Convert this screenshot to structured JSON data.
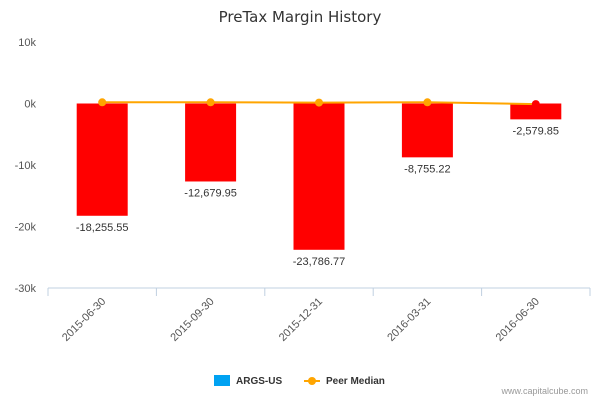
{
  "chart_data": {
    "type": "bar",
    "title": "PreTax Margin History",
    "categories": [
      "2015-06-30",
      "2015-09-30",
      "2015-12-31",
      "2016-03-31",
      "2016-06-30"
    ],
    "series": [
      {
        "name": "ARGS-US",
        "type": "bar",
        "values": [
          -18255.55,
          -12679.95,
          -23786.77,
          -8755.22,
          -2579.85
        ],
        "labels": [
          "-18,255.55",
          "-12,679.95",
          "-23,786.77",
          "-8,755.22",
          "-2,579.85"
        ],
        "color": "#ff0000",
        "legend_color": "#00a2f2"
      },
      {
        "name": "Peer Median",
        "type": "line",
        "values": [
          200,
          200,
          150,
          200,
          -100
        ],
        "color": "#ffa500",
        "last_point_color": "#ff0000"
      }
    ],
    "ylim": [
      -30000,
      10000
    ],
    "yticks": [
      10000,
      0,
      -10000,
      -20000,
      -30000
    ],
    "ytick_labels": [
      "10k",
      "0k",
      "-10k",
      "-20k",
      "-30k"
    ],
    "xlabel": "",
    "ylabel": "",
    "grid": false,
    "legend_position": "bottom"
  },
  "credit": "www.capitalcube.com"
}
